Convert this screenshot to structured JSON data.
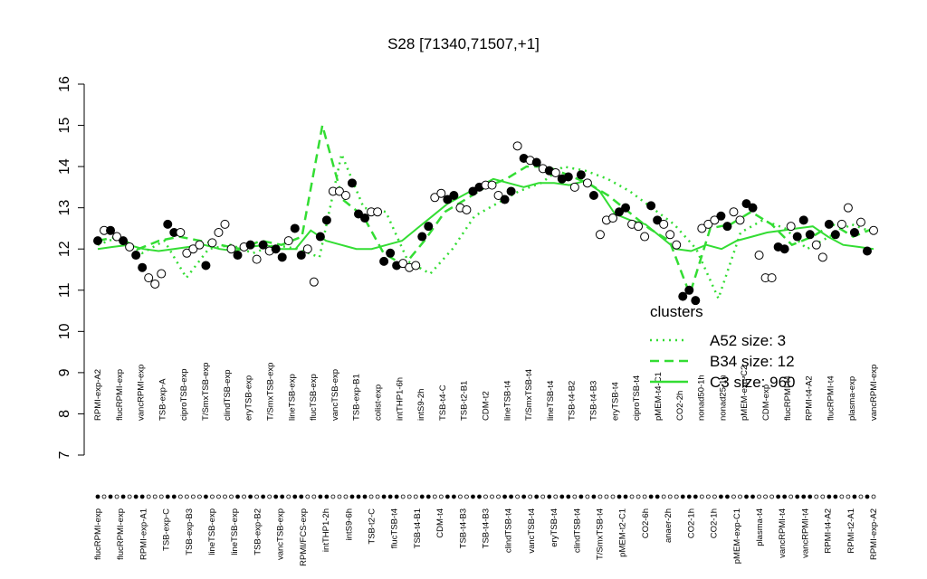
{
  "chart_data": {
    "type": "scatter",
    "title": "S28 [71340,71507,+1]",
    "ylim": [
      7,
      16
    ],
    "yticks": [
      7,
      8,
      9,
      10,
      11,
      12,
      13,
      14,
      15,
      16
    ],
    "top_labels": [
      "RPMI-exp-A2",
      "flucRPMI-exp",
      "vancRPMI-exp",
      "TSB-exp-A",
      "ciproTSB-exp",
      "T/SmxTSB-exp",
      "clindTSB-exp",
      "eryTSB-exp",
      "T/SmxTSB-exp",
      "lineTSB-exp",
      "flucTSB-exp",
      "vancTSB-exp",
      "TSB-exp-B1",
      "colist-exp",
      "intTHP1-6h",
      "intS9-2h",
      "TSB-t4-C",
      "TSB-t2-B1",
      "CDM-t2",
      "lineTSB-t4",
      "T/SmxTSB-t4",
      "lineTSB-t4",
      "TSB-t4-B2",
      "TSB-t4-B3",
      "eryTSB-t4",
      "ciproTSB-t4",
      "pMEM-t4-C1",
      "CO2-2h",
      "nonad50-1h",
      "nonad25-1h",
      "pMEM-exp-C2",
      "CDM-exp",
      "flucRPMI-t4",
      "RPMI-t4-A2",
      "flucRPMI-t4",
      "plasma-exp",
      "vancRPMI-exp"
    ],
    "bottom_labels": [
      "flucRPMI-exp",
      "flucRPMI-exp",
      "RPMI-exp-A1",
      "TSB-exp-C",
      "TSB-exp-B3",
      "lineTSB-exp",
      "lineTSB-exp",
      "TSB-exp-B2",
      "vancTSB-exp",
      "RPMI/FCS-exp",
      "intTHP1-2h",
      "intS9-6h",
      "TSB-t2-C",
      "flucTSB-t4",
      "TSB-t4-B1",
      "CDM-t4",
      "TSB-t4-B3",
      "TSB-t4-B3",
      "clindTSB-t4",
      "vancTSB-t4",
      "eryTSB-t4",
      "clindTSB-t4",
      "T/SmxTSB-t4",
      "pMEM-t2-C1",
      "CO2-6h",
      "anaer-2h",
      "CO2-1h",
      "CO2-1h",
      "pMEM-exp-C1",
      "plasma-t4",
      "vancRPMI-t4",
      "vancRPMI-t4",
      "RPMI-t4-A2",
      "RPMI-t2-A1",
      "RPMI-exp-A2"
    ],
    "points": {
      "values": [
        12.2,
        12.45,
        12.45,
        12.3,
        12.2,
        12.05,
        11.85,
        11.55,
        11.3,
        11.15,
        11.4,
        12.6,
        12.4,
        12.4,
        11.9,
        12.0,
        12.1,
        11.6,
        12.15,
        12.4,
        12.6,
        12.0,
        11.85,
        12.05,
        12.1,
        11.75,
        12.1,
        11.95,
        12.0,
        11.8,
        12.2,
        12.5,
        11.85,
        12.0,
        11.2,
        12.3,
        12.7,
        13.4,
        13.4,
        13.3,
        13.6,
        12.85,
        12.75,
        12.9,
        12.9,
        11.7,
        11.9,
        11.6,
        11.65,
        11.55,
        11.6,
        12.3,
        12.55,
        13.25,
        13.35,
        13.2,
        13.3,
        13.0,
        12.95,
        13.4,
        13.5,
        13.55,
        13.55,
        13.3,
        13.2,
        13.4,
        14.5,
        14.2,
        14.15,
        14.1,
        13.95,
        13.9,
        13.85,
        13.7,
        13.75,
        13.5,
        13.8,
        13.6,
        13.3,
        12.35,
        12.7,
        12.75,
        12.9,
        13.0,
        12.6,
        12.55,
        12.3,
        13.05,
        12.7,
        12.6,
        12.35,
        12.1,
        10.85,
        11.0,
        10.75,
        12.5,
        12.6,
        12.7,
        12.8,
        12.55,
        12.9,
        12.7,
        13.1,
        13.0,
        11.85,
        11.3,
        11.3,
        12.05,
        12.0,
        12.55,
        12.3,
        12.7,
        12.35,
        12.1,
        11.8,
        12.6,
        12.35,
        12.6,
        13.0,
        12.4,
        12.65,
        11.95,
        12.45
      ],
      "filled": [
        true,
        false,
        true,
        false,
        true,
        false,
        true,
        true,
        false,
        false,
        false,
        true,
        true,
        false,
        false,
        false,
        false,
        true,
        false,
        false,
        false,
        false,
        true,
        false,
        true,
        false,
        true,
        false,
        true,
        true,
        false,
        true,
        true,
        false,
        false,
        true,
        true,
        false,
        false,
        false,
        true,
        true,
        true,
        false,
        false,
        true,
        true,
        true,
        false,
        false,
        false,
        true,
        true,
        false,
        false,
        true,
        true,
        false,
        false,
        true,
        true,
        false,
        false,
        false,
        true,
        true,
        false,
        true,
        false,
        true,
        false,
        true,
        false,
        true,
        true,
        false,
        true,
        false,
        true,
        false,
        false,
        false,
        true,
        true,
        false,
        false,
        false,
        true,
        true,
        false,
        false,
        false,
        true,
        true,
        true,
        false,
        false,
        false,
        true,
        true,
        false,
        false,
        true,
        true,
        false,
        false,
        false,
        true,
        true,
        false,
        true,
        true,
        true,
        false,
        false,
        true,
        true,
        false,
        false,
        true,
        false,
        true,
        false
      ]
    },
    "legend_title": "clusters",
    "series": [
      {
        "name": "A52 size: 3",
        "color": "#33dd33",
        "dash": "2,5",
        "values": [
          12.1,
          12.3,
          11.9,
          12.2,
          11.3,
          12.0,
          12.1,
          11.9,
          12.1,
          12.0,
          11.8,
          14.3,
          13.0,
          12.9,
          11.7,
          11.4,
          12.0,
          12.8,
          13.1,
          13.4,
          13.6,
          14.0,
          13.9,
          13.7,
          13.4,
          13.0,
          12.6,
          12.0,
          10.8,
          12.4,
          12.7,
          12.5,
          12.0,
          12.3,
          12.6,
          12.4
        ]
      },
      {
        "name": "B34 size: 12",
        "color": "#33dd33",
        "dash": "10,6",
        "values": [
          12.2,
          12.3,
          12.0,
          12.2,
          12.3,
          12.2,
          12.1,
          12.0,
          12.2,
          12.1,
          12.3,
          15.0,
          13.2,
          12.8,
          11.9,
          11.6,
          12.2,
          12.9,
          13.2,
          13.5,
          13.7,
          14.0,
          14.0,
          13.8,
          13.6,
          13.3,
          12.9,
          12.5,
          12.2,
          10.9,
          12.5,
          12.6,
          12.9,
          12.6,
          12.1,
          12.3,
          12.6,
          12.3,
          12.5
        ]
      },
      {
        "name": "C3 size: 960",
        "color": "#33dd33",
        "dash": "",
        "values": [
          12.0,
          12.05,
          12.1,
          12.0,
          11.95,
          12.0,
          12.05,
          12.1,
          12.0,
          11.95,
          12.05,
          12.1,
          12.0,
          12.0,
          12.45,
          12.2,
          12.1,
          12.0,
          12.0,
          12.1,
          12.2,
          12.5,
          12.8,
          13.1,
          13.3,
          13.5,
          13.7,
          13.6,
          13.5,
          13.6,
          13.6,
          13.55,
          13.65,
          13.4,
          12.85,
          12.7,
          12.6,
          12.3,
          12.0,
          11.95,
          12.1,
          12.0,
          12.2,
          12.3,
          12.4,
          12.45,
          12.5,
          12.55,
          12.3,
          12.1,
          12.05,
          12.0
        ]
      }
    ]
  }
}
